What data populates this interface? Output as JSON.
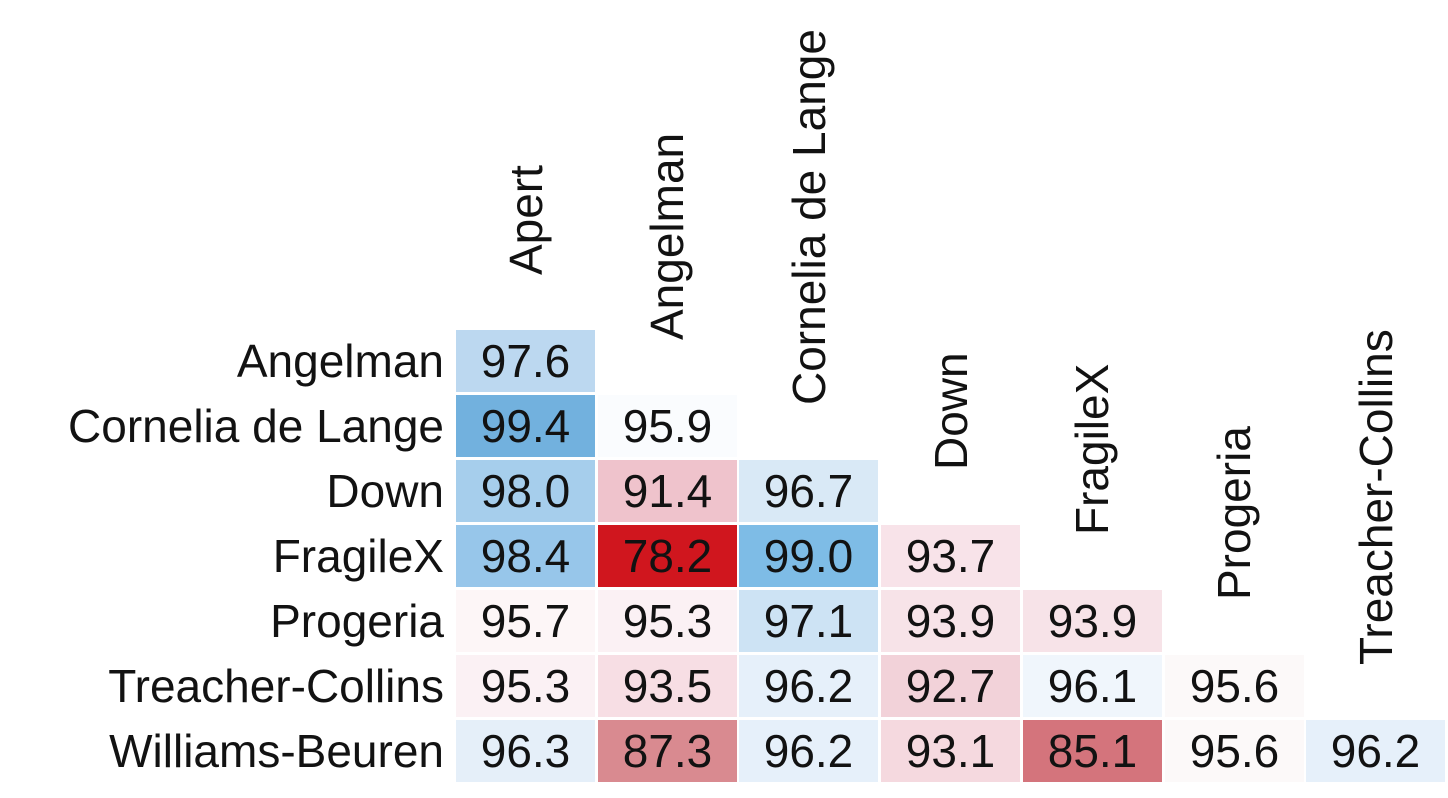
{
  "chart_data": {
    "type": "heatmap",
    "layout": "lower-triangle",
    "grid": false,
    "row_labels": [
      "Angelman",
      "Cornelia de Lange",
      "Down",
      "FragileX",
      "Progeria",
      "Treacher-Collins",
      "Williams-Beuren"
    ],
    "col_labels": [
      "Apert",
      "Angelman",
      "Cornelia de Lange",
      "Down",
      "FragileX",
      "Progeria",
      "Treacher-Collins"
    ],
    "values": [
      [
        97.6
      ],
      [
        99.4,
        95.9
      ],
      [
        98.0,
        91.4,
        96.7
      ],
      [
        98.4,
        78.2,
        99.0,
        93.7
      ],
      [
        95.7,
        95.3,
        97.1,
        93.9,
        93.9
      ],
      [
        95.3,
        93.5,
        96.2,
        92.7,
        96.1,
        95.6
      ],
      [
        96.3,
        87.3,
        96.2,
        93.1,
        85.1,
        95.6,
        96.2
      ]
    ],
    "value_labels": [
      [
        "97.6"
      ],
      [
        "99.4",
        "95.9"
      ],
      [
        "98.0",
        "91.4",
        "96.7"
      ],
      [
        "98.4",
        "78.2",
        "99.0",
        "93.7"
      ],
      [
        "95.7",
        "95.3",
        "97.1",
        "93.9",
        "93.9"
      ],
      [
        "95.3",
        "93.5",
        "96.2",
        "92.7",
        "96.1",
        "95.6"
      ],
      [
        "96.3",
        "87.3",
        "96.2",
        "93.1",
        "85.1",
        "95.6",
        "96.2"
      ]
    ],
    "cell_colors": [
      [
        "#BCD8F0"
      ],
      [
        "#72B1DE",
        "#FAFCFE"
      ],
      [
        "#A6CEEC",
        "#EFC3CC",
        "#D9E9F6"
      ],
      [
        "#97C6EA",
        "#D0161E",
        "#7EBCE6",
        "#F8E3E9"
      ],
      [
        "#FDF6F7",
        "#FBF1F4",
        "#CDE3F4",
        "#F7E3E8",
        "#F7E3E8"
      ],
      [
        "#FBF1F4",
        "#F7DEE4",
        "#E6F0FA",
        "#F2D2D9",
        "#F0F6FC",
        "#FCF9F9"
      ],
      [
        "#E5EFF9",
        "#D98A90",
        "#E6F0FA",
        "#F5D9DF",
        "#D4747C",
        "#FCF9F9",
        "#E6F0FA"
      ]
    ],
    "colormap": {
      "description": "diverging red-white-blue",
      "low_color": "#D0161E",
      "mid_color": "#FFFFFF",
      "high_color": "#6AAED6"
    },
    "text_color": "#121212"
  }
}
